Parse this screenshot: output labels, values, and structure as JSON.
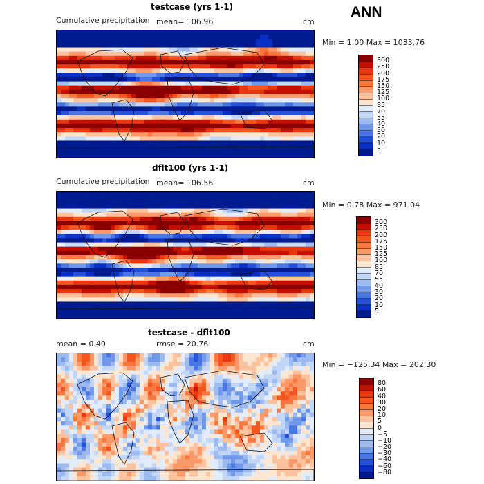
{
  "season": "ANN",
  "panels": [
    {
      "title": "testcase (yrs 1-1)",
      "subtitle_left": "Cumulative precipitation",
      "mean_text": "mean= 106.96",
      "units": "cm",
      "stats": "Min =    1.00 Max = 1033.76",
      "min": 1.0,
      "max": 1033.76,
      "mean": 106.96,
      "colorbar": {
        "levels": [
          "300",
          "250",
          "200",
          "175",
          "150",
          "125",
          "100",
          "85",
          "70",
          "55",
          "40",
          "30",
          "20",
          "10",
          "5"
        ],
        "colors": [
          "#8a0000",
          "#c20f00",
          "#e8360f",
          "#f4551f",
          "#f7773f",
          "#f9996a",
          "#fcc29e",
          "#fde6cf",
          "#e3ecfa",
          "#c2d6f5",
          "#9dbbf0",
          "#7199ea",
          "#4a76e3",
          "#2451d8",
          "#0a2fc4",
          "#001a8f"
        ]
      }
    },
    {
      "title": "dflt100 (yrs 1-1)",
      "subtitle_left": "Cumulative precipitation",
      "mean_text": "mean= 106.56",
      "units": "cm",
      "stats": "Min =    0.78 Max = 971.04",
      "min": 0.78,
      "max": 971.04,
      "mean": 106.56,
      "colorbar": {
        "levels": [
          "300",
          "250",
          "200",
          "175",
          "150",
          "125",
          "100",
          "85",
          "70",
          "55",
          "40",
          "30",
          "20",
          "10",
          "5"
        ],
        "colors": [
          "#8a0000",
          "#c20f00",
          "#e8360f",
          "#f4551f",
          "#f7773f",
          "#f9996a",
          "#fcc29e",
          "#fde6cf",
          "#e3ecfa",
          "#c2d6f5",
          "#9dbbf0",
          "#7199ea",
          "#4a76e3",
          "#2451d8",
          "#0a2fc4",
          "#001a8f"
        ]
      }
    },
    {
      "title": "testcase - dflt100",
      "subtitle_left": "mean =     0.40",
      "mean_text": "rmse =   20.76",
      "units": "cm",
      "stats": "Min = −125.34 Max = 202.30",
      "min": -125.34,
      "max": 202.3,
      "mean": 0.4,
      "rmse": 20.76,
      "colorbar": {
        "levels": [
          "80",
          "60",
          "40",
          "30",
          "20",
          "10",
          "5",
          "0",
          "−5",
          "−10",
          "−20",
          "−30",
          "−40",
          "−60",
          "−80"
        ],
        "colors": [
          "#8a0000",
          "#c20f00",
          "#e8360f",
          "#f4551f",
          "#f7773f",
          "#f9996a",
          "#fcc29e",
          "#fde6cf",
          "#e3ecfa",
          "#c2d6f5",
          "#9dbbf0",
          "#7199ea",
          "#4a76e3",
          "#2451d8",
          "#0a2fc4",
          "#001a8f"
        ]
      }
    }
  ],
  "chart_data": [
    {
      "type": "heatmap",
      "title": "testcase (yrs 1-1)",
      "field": "Cumulative precipitation",
      "units": "cm",
      "mean": 106.96,
      "min": 1.0,
      "max": 1033.76,
      "contour_levels": [
        5,
        10,
        20,
        30,
        40,
        55,
        70,
        85,
        100,
        125,
        150,
        175,
        200,
        250,
        300
      ]
    },
    {
      "type": "heatmap",
      "title": "dflt100 (yrs 1-1)",
      "field": "Cumulative precipitation",
      "units": "cm",
      "mean": 106.56,
      "min": 0.78,
      "max": 971.04,
      "contour_levels": [
        5,
        10,
        20,
        30,
        40,
        55,
        70,
        85,
        100,
        125,
        150,
        175,
        200,
        250,
        300
      ]
    },
    {
      "type": "heatmap",
      "title": "testcase - dflt100",
      "units": "cm",
      "mean": 0.4,
      "rmse": 20.76,
      "min": -125.34,
      "max": 202.3,
      "contour_levels": [
        -80,
        -60,
        -40,
        -30,
        -20,
        -10,
        -5,
        0,
        5,
        10,
        20,
        30,
        40,
        60,
        80
      ]
    }
  ]
}
